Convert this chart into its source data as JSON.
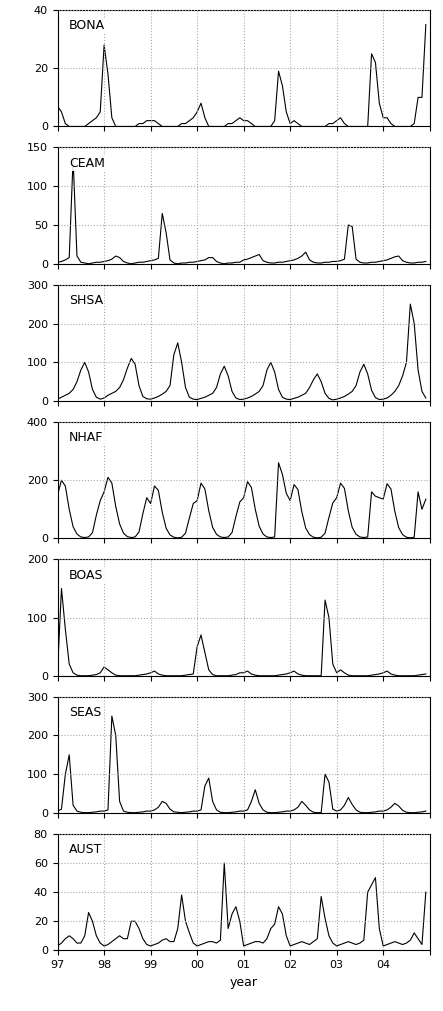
{
  "panels": [
    {
      "label": "BONA",
      "ylim": [
        0,
        40
      ],
      "yticks": [
        0,
        20,
        40
      ],
      "data": [
        7,
        5,
        1,
        0,
        0,
        0,
        0,
        0,
        1,
        2,
        3,
        5,
        28,
        18,
        3,
        0,
        0,
        0,
        0,
        0,
        0,
        1,
        1,
        2,
        2,
        2,
        1,
        0,
        0,
        0,
        0,
        0,
        1,
        1,
        2,
        3,
        5,
        8,
        3,
        0,
        0,
        0,
        0,
        0,
        1,
        1,
        2,
        3,
        2,
        2,
        1,
        0,
        0,
        0,
        0,
        0,
        2,
        19,
        14,
        5,
        1,
        2,
        1,
        0,
        0,
        0,
        0,
        0,
        0,
        0,
        1,
        1,
        2,
        3,
        1,
        0,
        0,
        0,
        0,
        0,
        0,
        25,
        22,
        8,
        3,
        3,
        1,
        0,
        0,
        0,
        0,
        0,
        1,
        10,
        10,
        35
      ]
    },
    {
      "label": "CEAM",
      "ylim": [
        0,
        150
      ],
      "yticks": [
        0,
        50,
        100,
        150
      ],
      "data": [
        2,
        3,
        5,
        8,
        135,
        10,
        2,
        1,
        0,
        1,
        2,
        2,
        3,
        4,
        6,
        10,
        8,
        3,
        1,
        0,
        1,
        2,
        2,
        3,
        4,
        5,
        7,
        65,
        40,
        5,
        1,
        0,
        1,
        1,
        2,
        2,
        3,
        4,
        5,
        8,
        8,
        3,
        1,
        0,
        1,
        1,
        2,
        2,
        5,
        6,
        8,
        10,
        12,
        4,
        2,
        1,
        1,
        2,
        2,
        3,
        4,
        5,
        7,
        10,
        15,
        5,
        2,
        1,
        1,
        2,
        2,
        3,
        3,
        4,
        6,
        50,
        48,
        6,
        2,
        1,
        1,
        2,
        2,
        3,
        4,
        5,
        7,
        9,
        10,
        4,
        2,
        1,
        1,
        2,
        2,
        3
      ]
    },
    {
      "label": "SHSA",
      "ylim": [
        0,
        300
      ],
      "yticks": [
        0,
        100,
        200,
        300
      ],
      "data": [
        5,
        10,
        15,
        20,
        30,
        50,
        80,
        100,
        75,
        30,
        10,
        5,
        8,
        15,
        20,
        25,
        35,
        55,
        85,
        110,
        95,
        40,
        12,
        6,
        5,
        8,
        12,
        18,
        25,
        40,
        120,
        150,
        100,
        35,
        10,
        5,
        4,
        7,
        10,
        15,
        20,
        35,
        70,
        90,
        65,
        25,
        8,
        4,
        5,
        8,
        12,
        18,
        25,
        40,
        80,
        100,
        75,
        30,
        10,
        5,
        4,
        7,
        10,
        15,
        20,
        35,
        55,
        70,
        50,
        20,
        7,
        3,
        5,
        8,
        12,
        18,
        25,
        40,
        75,
        95,
        70,
        28,
        9,
        4,
        5,
        8,
        15,
        25,
        40,
        65,
        100,
        250,
        200,
        80,
        25,
        8
      ]
    },
    {
      "label": "NHAF",
      "ylim": [
        0,
        400
      ],
      "yticks": [
        0,
        200,
        400
      ],
      "data": [
        150,
        200,
        180,
        100,
        40,
        15,
        5,
        3,
        5,
        20,
        80,
        130,
        160,
        210,
        190,
        110,
        50,
        18,
        6,
        3,
        5,
        22,
        85,
        140,
        120,
        180,
        165,
        90,
        35,
        12,
        4,
        2,
        4,
        18,
        70,
        120,
        130,
        190,
        170,
        95,
        38,
        14,
        5,
        3,
        5,
        20,
        75,
        125,
        140,
        195,
        175,
        100,
        42,
        15,
        5,
        3,
        5,
        260,
        220,
        155,
        130,
        185,
        168,
        92,
        36,
        13,
        4,
        2,
        4,
        18,
        72,
        122,
        140,
        190,
        172,
        95,
        38,
        14,
        5,
        3,
        5,
        160,
        145,
        140,
        135,
        188,
        170,
        93,
        37,
        13,
        4,
        2,
        4,
        160,
        100,
        135
      ]
    },
    {
      "label": "BOAS",
      "ylim": [
        0,
        200
      ],
      "yticks": [
        0,
        100,
        200
      ],
      "data": [
        10,
        150,
        80,
        20,
        5,
        1,
        0,
        0,
        0,
        1,
        2,
        5,
        15,
        10,
        5,
        1,
        0,
        0,
        0,
        0,
        0,
        1,
        2,
        3,
        5,
        8,
        3,
        1,
        0,
        0,
        0,
        0,
        0,
        1,
        2,
        3,
        50,
        70,
        40,
        10,
        2,
        0,
        0,
        0,
        0,
        1,
        2,
        5,
        5,
        8,
        3,
        1,
        0,
        0,
        0,
        0,
        0,
        1,
        2,
        3,
        5,
        8,
        3,
        1,
        0,
        0,
        0,
        0,
        0,
        130,
        100,
        20,
        5,
        10,
        5,
        1,
        0,
        0,
        0,
        0,
        0,
        1,
        2,
        3,
        5,
        8,
        3,
        1,
        0,
        0,
        0,
        0,
        0,
        1,
        2,
        3
      ]
    },
    {
      "label": "SEAS",
      "ylim": [
        0,
        300
      ],
      "yticks": [
        0,
        100,
        200,
        300
      ],
      "data": [
        5,
        10,
        100,
        150,
        20,
        5,
        2,
        1,
        1,
        2,
        3,
        5,
        5,
        8,
        250,
        200,
        30,
        5,
        2,
        1,
        1,
        2,
        3,
        5,
        5,
        8,
        15,
        30,
        25,
        10,
        3,
        2,
        1,
        2,
        3,
        5,
        5,
        8,
        70,
        90,
        30,
        8,
        2,
        1,
        1,
        2,
        3,
        5,
        5,
        8,
        30,
        60,
        25,
        8,
        2,
        1,
        1,
        2,
        3,
        5,
        5,
        8,
        15,
        30,
        20,
        8,
        2,
        1,
        1,
        100,
        80,
        10,
        5,
        8,
        20,
        40,
        22,
        8,
        2,
        1,
        1,
        2,
        3,
        5,
        5,
        8,
        15,
        25,
        18,
        7,
        2,
        1,
        1,
        2,
        3,
        5
      ]
    },
    {
      "label": "AUST",
      "ylim": [
        0,
        80
      ],
      "yticks": [
        0,
        20,
        40,
        60,
        80
      ],
      "data": [
        3,
        5,
        8,
        10,
        8,
        5,
        5,
        10,
        26,
        20,
        10,
        5,
        3,
        4,
        6,
        8,
        10,
        8,
        8,
        20,
        20,
        15,
        8,
        4,
        3,
        4,
        5,
        7,
        8,
        6,
        6,
        15,
        38,
        20,
        12,
        5,
        3,
        4,
        5,
        6,
        6,
        5,
        7,
        60,
        15,
        25,
        30,
        20,
        3,
        4,
        5,
        6,
        6,
        5,
        8,
        15,
        18,
        30,
        25,
        10,
        3,
        4,
        5,
        6,
        5,
        4,
        6,
        8,
        37,
        22,
        10,
        5,
        3,
        4,
        5,
        6,
        5,
        4,
        5,
        7,
        40,
        45,
        50,
        15,
        3,
        4,
        5,
        6,
        5,
        4,
        5,
        7,
        12,
        8,
        4,
        40
      ]
    }
  ],
  "xtick_positions": [
    0,
    12,
    24,
    36,
    48,
    60,
    72,
    84,
    96
  ],
  "xtick_labels": [
    "97",
    "98",
    "99",
    "00",
    "01",
    "02",
    "03",
    "04",
    ""
  ],
  "xlabel": "year",
  "n_months": 96,
  "background_color": "#ffffff",
  "line_color": "#000000",
  "grid_color": "#aaaaaa"
}
